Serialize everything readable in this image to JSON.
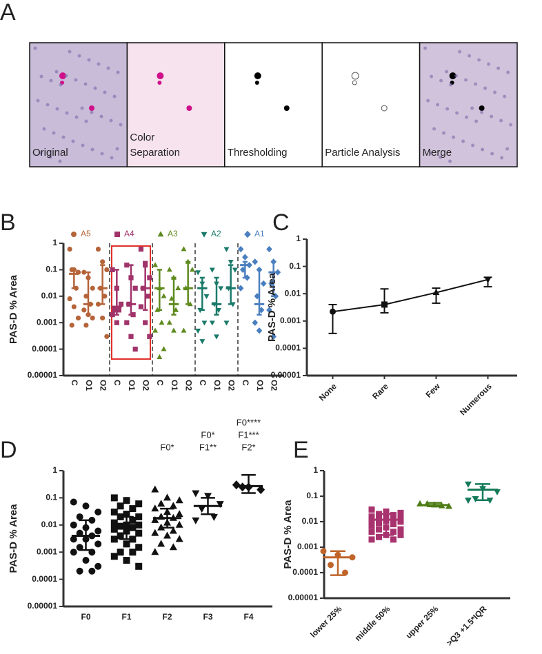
{
  "image_panel": {
    "panel": "A",
    "captions": [
      [
        "Original"
      ],
      [
        "Color",
        "Separation"
      ],
      [
        "Thresholding"
      ],
      [
        "Particle Analysis"
      ],
      [
        "Merge"
      ]
    ]
  },
  "chart_data": [
    {
      "type": "dot",
      "panel": "B",
      "ylabel": "PAS-D % Area",
      "ylog": true,
      "grid": false,
      "ylim": [
        1e-05,
        1
      ],
      "yticks": [
        1,
        0.1,
        0.01,
        0.001,
        0.0001,
        1e-05
      ],
      "categories": [
        "C",
        "O1",
        "O2"
      ],
      "series": [
        {
          "name": "A5",
          "color": "#b5643a",
          "marker": "circle",
          "values": [
            [
              0.6,
              0.1,
              0.08,
              0.1,
              0.02,
              0.008,
              0.004,
              0.0015,
              0.0008
            ],
            [
              0.08,
              0.05,
              0.02,
              0.01,
              0.005,
              0.003,
              0.002,
              0.0015,
              0.0008
            ],
            [
              0.6,
              0.2,
              0.1,
              0.02,
              0.01,
              0.005,
              0.0015,
              0.0003
            ]
          ],
          "median": [
            0.07,
            0.005,
            0.02
          ],
          "low": [
            0.02,
            0.002,
            0.005
          ],
          "high": [
            0.1,
            0.08,
            0.15
          ]
        },
        {
          "name": "A4",
          "color": "#a0336a",
          "marker": "square",
          "values": [
            [
              0.1,
              0.02,
              0.005,
              0.003,
              0.003,
              0.002,
              0.001
            ],
            [
              0.15,
              0.05,
              0.02,
              0.005,
              0.002,
              0.001,
              0.0003,
              0.0001
            ],
            [
              0.6,
              0.15,
              0.05,
              0.02,
              0.01,
              0.004,
              0.001,
              0.0003
            ]
          ],
          "median": [
            0.004,
            0.005,
            0.02
          ],
          "low": [
            0.002,
            0.002,
            0.003
          ],
          "high": [
            0.1,
            0.15,
            0.2
          ]
        },
        {
          "name": "A3",
          "color": "#5e8a1e",
          "marker": "triangle-up",
          "values": [
            [
              0.15,
              0.02,
              0.01,
              0.003,
              0.001,
              0.0005,
              5e-05,
              0.0001
            ],
            [
              0.1,
              0.05,
              0.02,
              0.008,
              0.003,
              0.001,
              0.0005
            ],
            [
              0.6,
              0.2,
              0.1,
              0.02,
              0.005,
              0.0005
            ]
          ],
          "median": [
            0.02,
            0.005,
            0.02
          ],
          "low": [
            0.003,
            0.002,
            0.005
          ],
          "high": [
            0.1,
            0.05,
            0.2
          ]
        },
        {
          "name": "A2",
          "color": "#1a7a6a",
          "marker": "triangle-down",
          "values": [
            [
              0.08,
              0.03,
              0.01,
              0.003,
              0.001,
              0.0005,
              0.0002
            ],
            [
              0.1,
              0.03,
              0.02,
              0.005,
              0.003,
              0.001,
              0.0003
            ],
            [
              0.6,
              0.2,
              0.1,
              0.02,
              0.005,
              0.001
            ]
          ],
          "median": [
            0.02,
            0.005,
            0.02
          ],
          "low": [
            0.003,
            0.002,
            0.005
          ],
          "high": [
            0.05,
            0.05,
            0.15
          ]
        },
        {
          "name": "A1",
          "color": "#4a7fbf",
          "marker": "diamond",
          "values": [
            [
              0.6,
              0.3,
              0.15,
              0.1,
              0.05,
              0.02
            ],
            [
              0.2,
              0.1,
              0.03,
              0.01,
              0.003,
              0.001,
              0.0005
            ],
            [
              0.6,
              0.2,
              0.08,
              0.03,
              0.01,
              0.003,
              0.0003
            ]
          ],
          "median": [
            0.15,
            0.005,
            0.08
          ],
          "low": [
            0.05,
            0.002,
            0.01
          ],
          "high": [
            0.2,
            0.1,
            0.2
          ]
        }
      ]
    },
    {
      "type": "line",
      "panel": "C",
      "ylabel": "PAS-D % Area",
      "ylog": true,
      "grid": false,
      "ylim": [
        1e-05,
        1
      ],
      "yticks": [
        1,
        0.1,
        0.01,
        0.001,
        0.0001,
        1e-05
      ],
      "categories": [
        "None",
        "Rare",
        "Few",
        "Numerous"
      ],
      "values": [
        0.0022,
        0.004,
        0.011,
        0.033
      ],
      "low": [
        0.00035,
        0.002,
        0.0045,
        0.018
      ],
      "high": [
        0.004,
        0.015,
        0.016,
        0.04
      ],
      "color": "#111111",
      "markers": [
        "circle",
        "square",
        "triangle-up",
        "triangle-down"
      ]
    },
    {
      "type": "dot",
      "panel": "D",
      "ylabel": "PAS-D % Area",
      "ylog": true,
      "grid": false,
      "ylim": [
        1e-05,
        1
      ],
      "yticks": [
        1,
        0.1,
        0.01,
        0.001,
        0.0001,
        1e-05
      ],
      "categories": [
        "F0",
        "F1",
        "F2",
        "F3",
        "F4"
      ],
      "color": "#111111",
      "markers": [
        "circle",
        "square",
        "triangle-up",
        "triangle-down",
        "diamond"
      ],
      "values": [
        [
          0.07,
          0.05,
          0.03,
          0.02,
          0.015,
          0.01,
          0.008,
          0.006,
          0.005,
          0.004,
          0.003,
          0.003,
          0.002,
          0.0015,
          0.001,
          0.001,
          0.0005,
          0.0003,
          0.0002,
          0.0002
        ],
        [
          0.1,
          0.08,
          0.06,
          0.05,
          0.04,
          0.03,
          0.025,
          0.02,
          0.02,
          0.015,
          0.012,
          0.01,
          0.01,
          0.009,
          0.008,
          0.007,
          0.006,
          0.005,
          0.004,
          0.003,
          0.003,
          0.002,
          0.0015,
          0.001,
          0.001,
          0.0007,
          0.0005,
          0.0003
        ],
        [
          0.2,
          0.1,
          0.08,
          0.06,
          0.05,
          0.04,
          0.03,
          0.025,
          0.02,
          0.018,
          0.015,
          0.012,
          0.01,
          0.008,
          0.006,
          0.005,
          0.004,
          0.003,
          0.002,
          0.0015,
          0.001
        ],
        [
          0.15,
          0.12,
          0.06,
          0.04,
          0.02,
          0.015
        ],
        [
          0.3,
          0.25,
          0.2,
          0.25
        ]
      ],
      "median": [
        0.004,
        0.01,
        0.018,
        0.05,
        0.27
      ],
      "low": [
        0.0012,
        0.003,
        0.008,
        0.025,
        0.15
      ],
      "high": [
        0.015,
        0.02,
        0.04,
        0.1,
        0.7
      ],
      "annotations": [
        null,
        null,
        [
          "F0*"
        ],
        [
          "F0*",
          "F1**"
        ],
        [
          "F0****",
          "F1***",
          "F2*"
        ]
      ]
    },
    {
      "type": "dot",
      "panel": "E",
      "ylabel": "PAS-D % Area",
      "ylog": true,
      "grid": false,
      "ylim": [
        1e-05,
        1
      ],
      "yticks": [
        1,
        0.1,
        0.01,
        0.001,
        0.0001,
        1e-05
      ],
      "categories": [
        "lower 25%",
        "middle 50%",
        "upper 25%",
        ">Q3 +1.5*IQR"
      ],
      "colors": [
        "#c0652a",
        "#a8336f",
        "#4e7d16",
        "#147a5a"
      ],
      "markers": [
        "circle",
        "square",
        "triangle-up",
        "triangle-down"
      ],
      "values": [
        [
          0.0007,
          0.0005,
          0.0004,
          0.0002,
          0.0001
        ],
        [
          0.03,
          0.025,
          0.022,
          0.02,
          0.018,
          0.016,
          0.015,
          0.014,
          0.013,
          0.012,
          0.012,
          0.011,
          0.01,
          0.009,
          0.008,
          0.007,
          0.006,
          0.005,
          0.005,
          0.004,
          0.004,
          0.003,
          0.003,
          0.0025,
          0.002,
          0.002
        ],
        [
          0.05,
          0.045,
          0.04,
          0.05,
          0.042
        ],
        [
          0.3,
          0.2,
          0.15,
          0.08,
          0.07,
          0.07
        ]
      ],
      "median": [
        0.0004,
        0.012,
        0.045,
        0.18
      ],
      "low": [
        8e-05,
        0.003,
        0.04,
        0.07
      ],
      "high": [
        0.0007,
        0.02,
        0.055,
        0.3
      ]
    }
  ]
}
